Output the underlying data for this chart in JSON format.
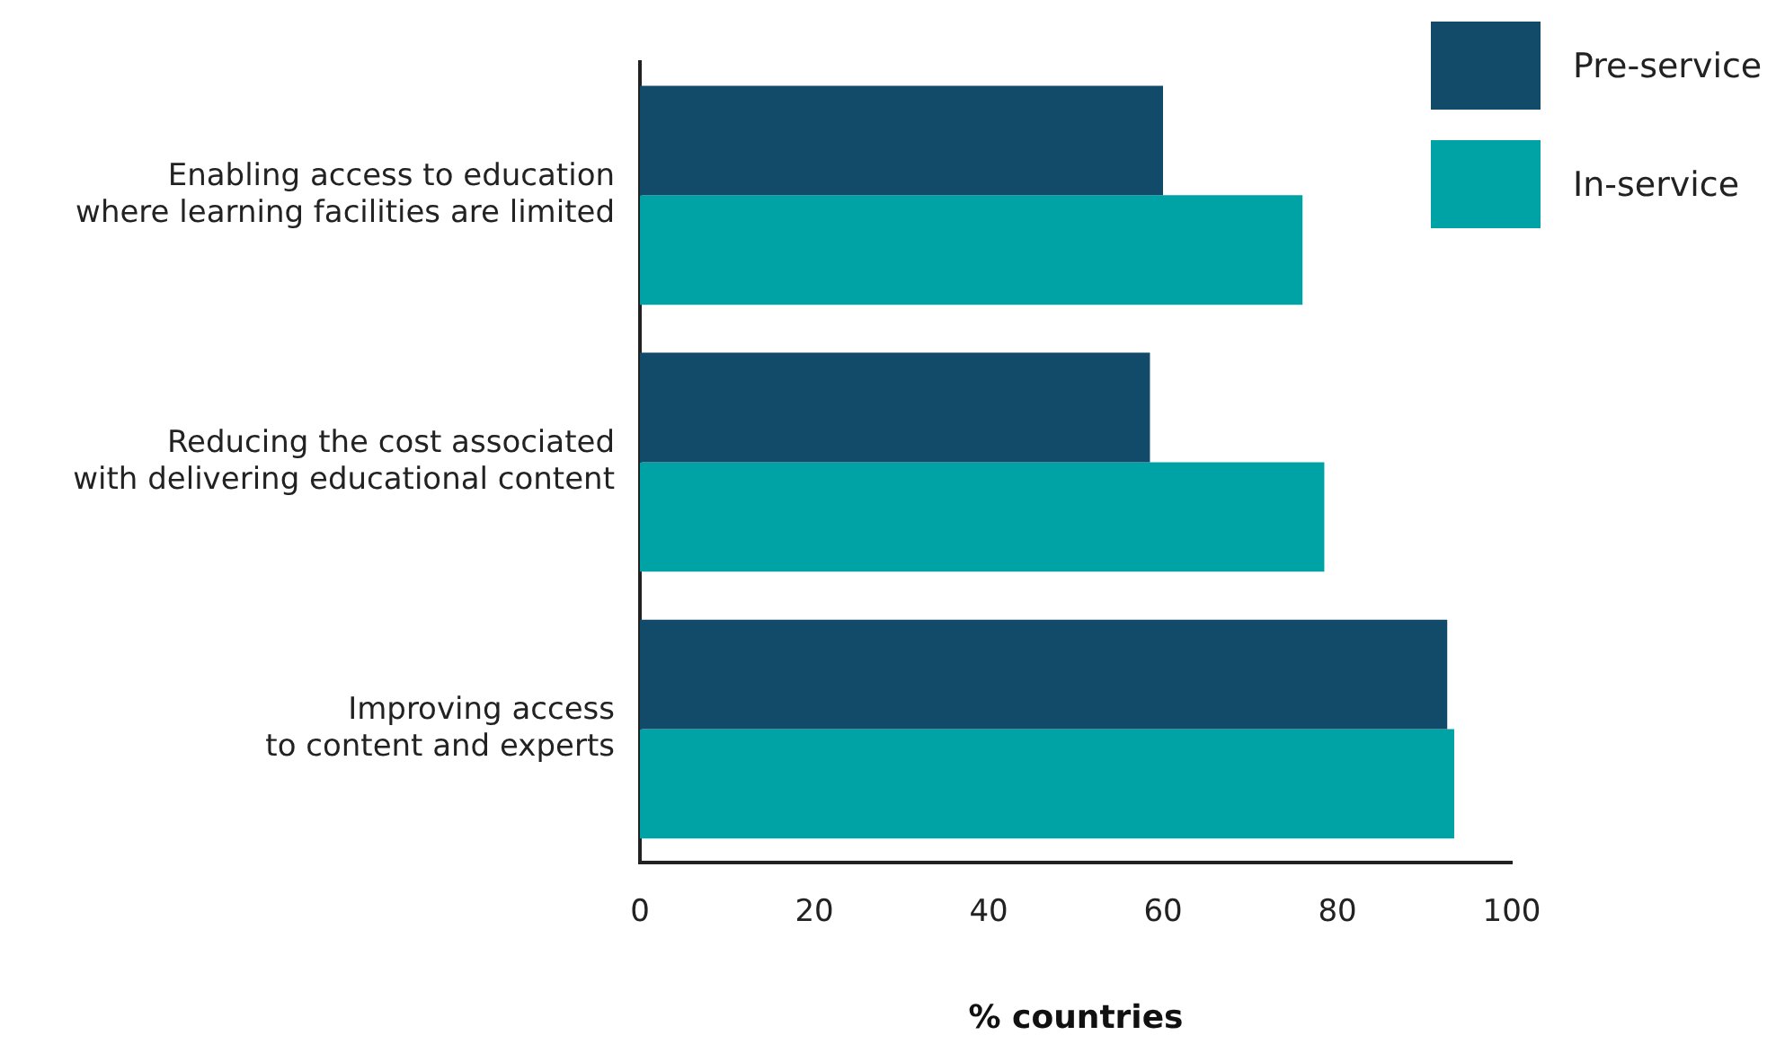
{
  "chart_data": {
    "type": "bar",
    "orientation": "horizontal",
    "xlabel": "% countries",
    "categories": [
      "Enabling access to education\nwhere learning facilities are limited",
      "Reducing the cost associated\nwith delivering educational content",
      "Improving access\nto content and experts"
    ],
    "series": [
      {
        "name": "Pre-service",
        "color": "#124a6a",
        "values": [
          60,
          58.5,
          92.6
        ]
      },
      {
        "name": "In-service",
        "color": "#00a3a5",
        "values": [
          76,
          78.5,
          93.4
        ]
      }
    ],
    "xlim": [
      0,
      100
    ],
    "xticks": [
      0,
      20,
      40,
      60,
      80,
      100
    ],
    "grid": false,
    "legend": "top right"
  }
}
